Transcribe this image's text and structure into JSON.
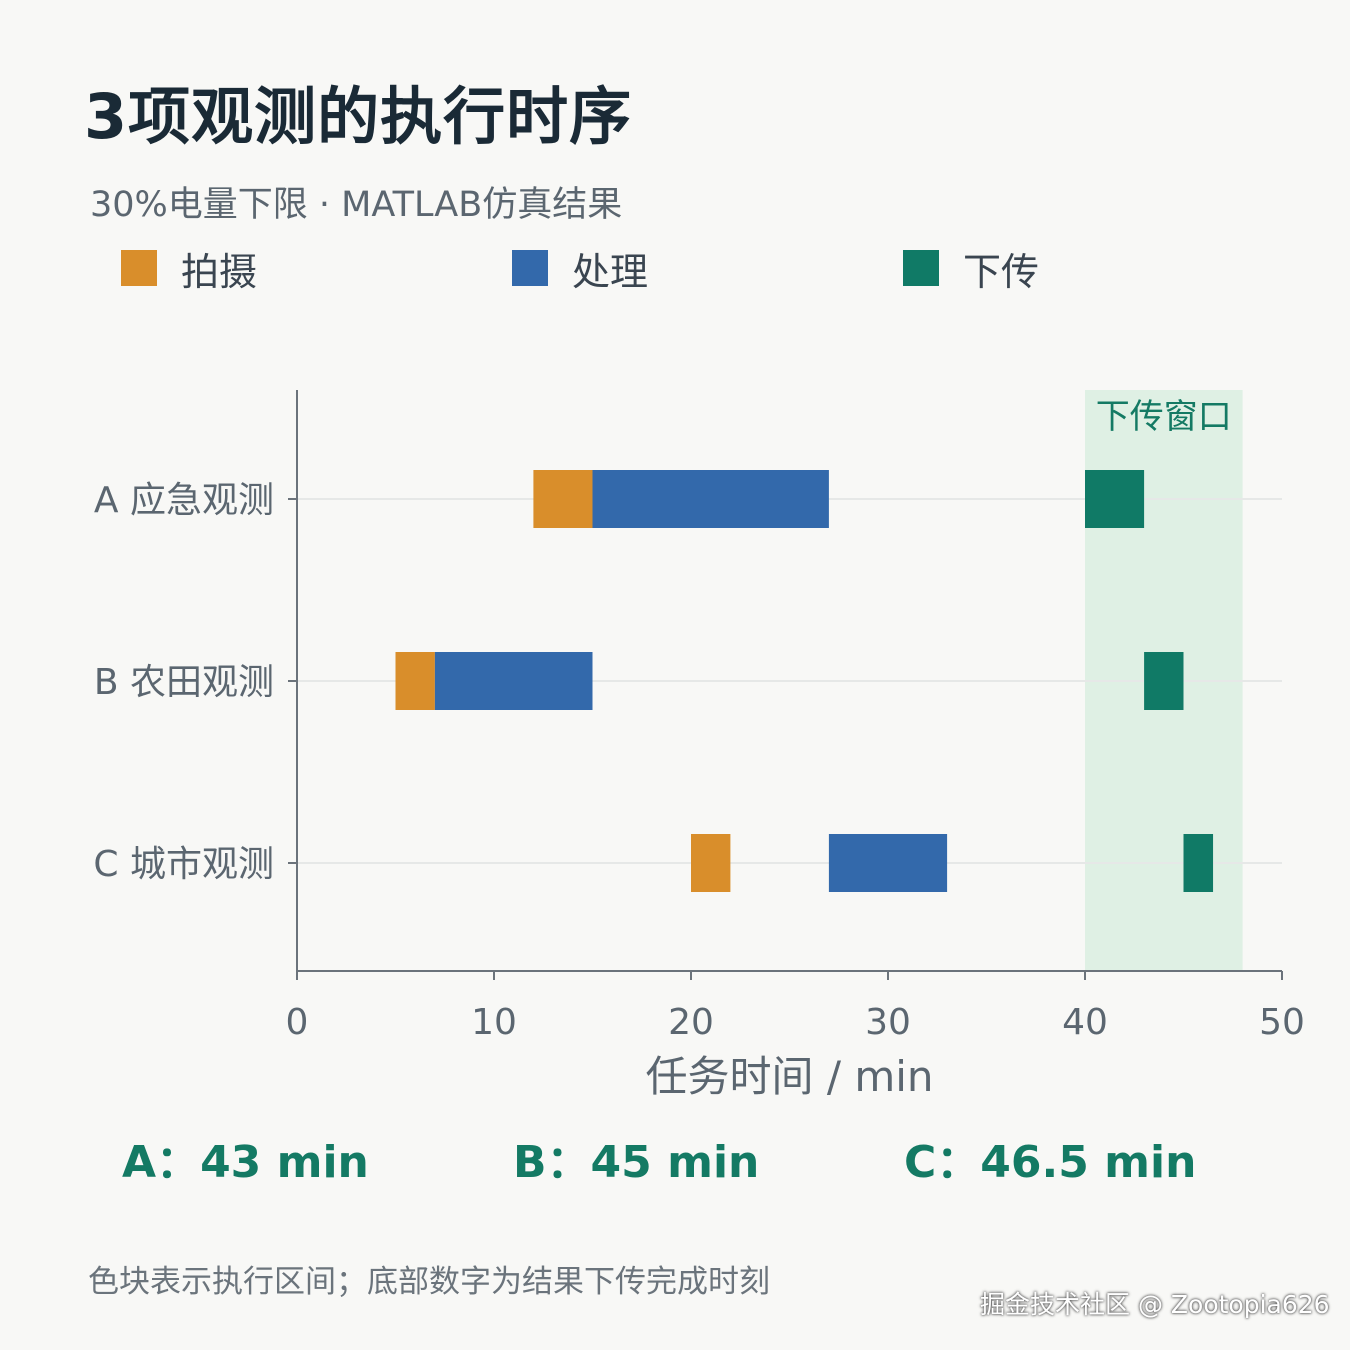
{
  "header": {
    "title": "3项观测的执行时序",
    "subtitle": "30%电量下限 · MATLAB仿真结果"
  },
  "legend": [
    {
      "label": "拍摄",
      "color": "#d98e2b"
    },
    {
      "label": "处理",
      "color": "#3369ab"
    },
    {
      "label": "下传",
      "color": "#107a66"
    }
  ],
  "chart_data": {
    "type": "gantt",
    "xlabel": "任务时间 / min",
    "xlim": [
      0,
      50
    ],
    "x_ticks": [
      0,
      10,
      20,
      30,
      40,
      50
    ],
    "grid": "horizontal at categories",
    "legend_placement": "top",
    "categories": [
      "A 应急观测",
      "B 农田观测",
      "C 城市观测"
    ],
    "series": [
      {
        "name": "拍摄",
        "color": "#d98e2b",
        "intervals": [
          [
            12,
            15
          ],
          [
            5,
            7
          ],
          [
            20,
            22
          ]
        ]
      },
      {
        "name": "处理",
        "color": "#3369ab",
        "intervals": [
          [
            15,
            27
          ],
          [
            7,
            15
          ],
          [
            27,
            33
          ]
        ]
      },
      {
        "name": "下传",
        "color": "#107a66",
        "intervals": [
          [
            40,
            43
          ],
          [
            43,
            45
          ],
          [
            45,
            46.5
          ]
        ]
      }
    ],
    "window": {
      "label": "下传窗口",
      "start": 40,
      "end": 48,
      "color": "#dff0e4",
      "label_color": "#147a64"
    }
  },
  "results": [
    {
      "label": "A：",
      "value": "43 min"
    },
    {
      "label": "B：",
      "value": "45 min"
    },
    {
      "label": "C：",
      "value": "46.5 min"
    }
  ],
  "footer": {
    "note": "色块表示执行区间；底部数字为结果下传完成时刻",
    "watermark": "掘金技术社区 @ Zootopia626"
  }
}
